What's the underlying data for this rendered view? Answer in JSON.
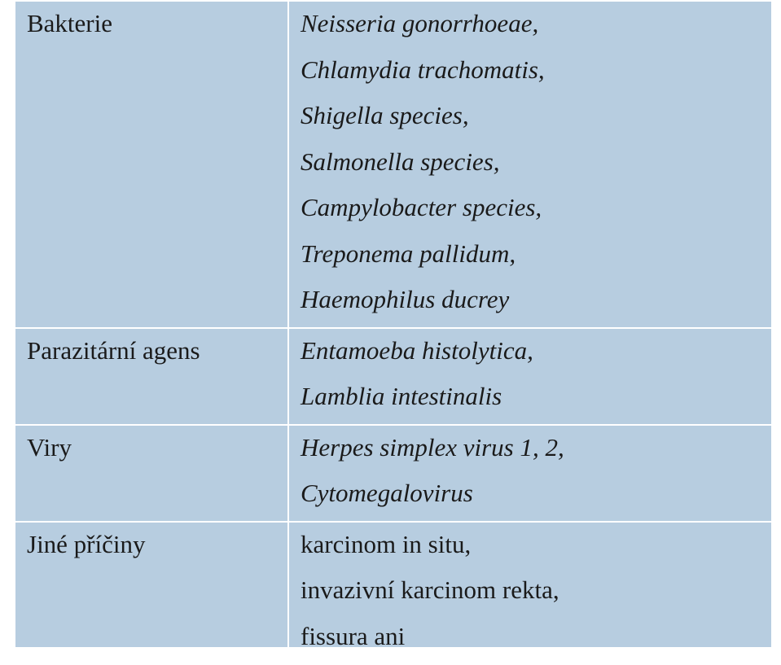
{
  "table": {
    "rows": [
      {
        "category": "Bakterie",
        "italic": true,
        "items": [
          "Neisseria gonorrhoeae,",
          "Chlamydia trachomatis,",
          "Shigella species,",
          "Salmonella species,",
          "Campylobacter species,",
          "Treponema pallidum,",
          "Haemophilus ducrey"
        ]
      },
      {
        "category": "Parazitární agens",
        "italic": true,
        "items": [
          "Entamoeba histolytica,",
          "Lamblia intestinalis"
        ]
      },
      {
        "category": "Viry",
        "italic": true,
        "items": [
          "Herpes simplex virus 1, 2,",
          "Cytomegalovirus"
        ]
      },
      {
        "category": "Jiné příčiny",
        "italic": false,
        "items": [
          "karcinom in situ,",
          "invazivní karcinom rekta,",
          "fissura ani"
        ]
      }
    ]
  },
  "colors": {
    "cell_background": "#b7cde0",
    "grid_lines": "#ffffff",
    "text": "#1a1a1a"
  }
}
